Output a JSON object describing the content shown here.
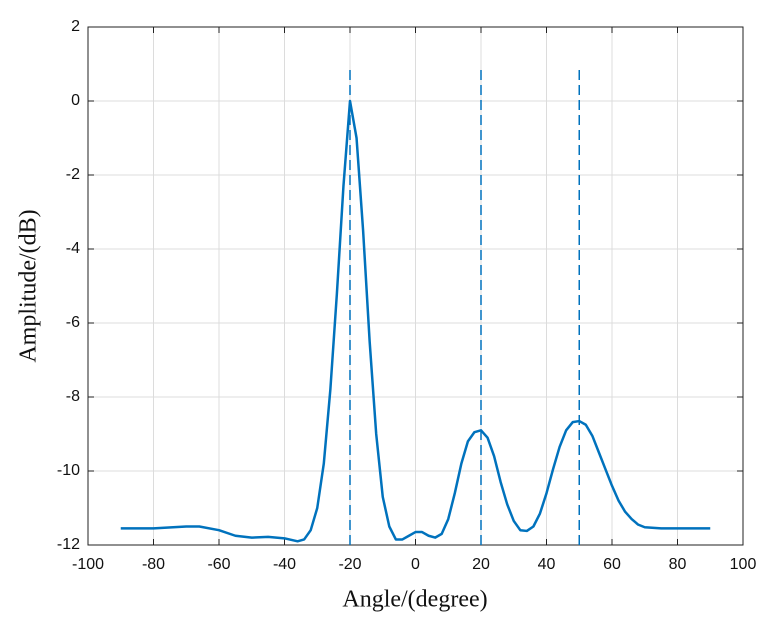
{
  "chart_data": {
    "type": "line",
    "xlabel": "Angle/(degree)",
    "ylabel": "Amplitude/(dB)",
    "x": [
      -90,
      -80,
      -70,
      -66,
      -60,
      -55,
      -50,
      -45,
      -40,
      -36,
      -34,
      -32,
      -30,
      -28,
      -26,
      -24,
      -22,
      -20,
      -18,
      -16,
      -14,
      -12,
      -10,
      -8,
      -6,
      -4,
      -2,
      0,
      2,
      4,
      6,
      8,
      10,
      12,
      14,
      16,
      18,
      20,
      22,
      24,
      26,
      28,
      30,
      32,
      34,
      36,
      38,
      40,
      42,
      44,
      46,
      48,
      50,
      52,
      54,
      56,
      58,
      60,
      62,
      64,
      66,
      68,
      70,
      75,
      80,
      90
    ],
    "values": [
      -11.55,
      -11.55,
      -11.5,
      -11.5,
      -11.6,
      -11.75,
      -11.8,
      -11.78,
      -11.82,
      -11.9,
      -11.85,
      -11.6,
      -11.0,
      -9.8,
      -7.8,
      -5.2,
      -2.3,
      0,
      -1.0,
      -3.5,
      -6.5,
      -9.0,
      -10.7,
      -11.5,
      -11.85,
      -11.85,
      -11.75,
      -11.65,
      -11.65,
      -11.75,
      -11.8,
      -11.7,
      -11.3,
      -10.6,
      -9.8,
      -9.2,
      -8.95,
      -8.9,
      -9.1,
      -9.6,
      -10.3,
      -10.9,
      -11.35,
      -11.6,
      -11.62,
      -11.5,
      -11.15,
      -10.6,
      -9.95,
      -9.35,
      -8.9,
      -8.68,
      -8.65,
      -8.75,
      -9.05,
      -9.5,
      -9.95,
      -10.4,
      -10.8,
      -11.1,
      -11.3,
      -11.45,
      -11.52,
      -11.55,
      -11.55,
      -11.55
    ],
    "color": "#0072bd",
    "vlines": [
      -20,
      20,
      50
    ],
    "vline_top": 0.85,
    "xlim": [
      -100,
      100
    ],
    "xticks": [
      -100,
      -80,
      -60,
      -40,
      -20,
      0,
      20,
      40,
      60,
      80,
      100
    ],
    "ylim": [
      -12,
      2
    ],
    "yticks": [
      -12,
      -10,
      -8,
      -6,
      -4,
      -2,
      0,
      2
    ],
    "grid": true
  }
}
